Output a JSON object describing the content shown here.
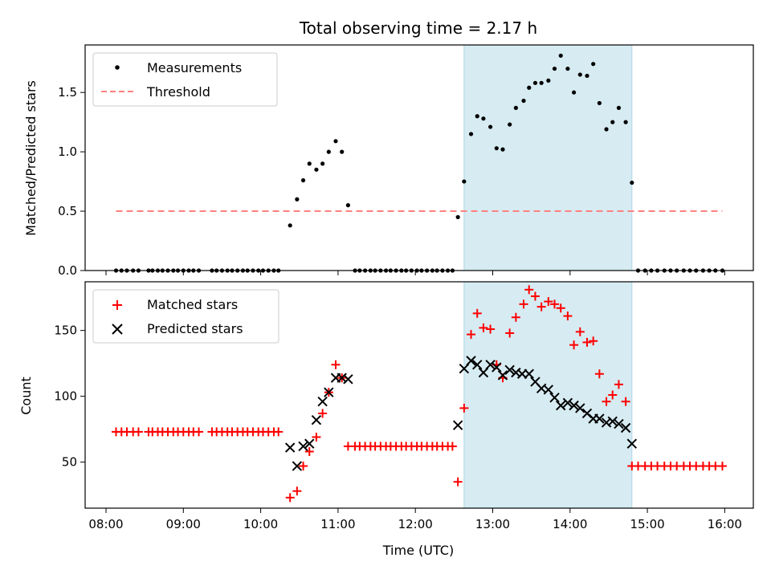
{
  "title": "Total observing time = 2.17 h",
  "colors": {
    "measurement": "#000000",
    "threshold": "#ff8080",
    "matched": "#ff0000",
    "predicted": "#000000",
    "span_fill": "#add8e6"
  },
  "chart_data": [
    {
      "type": "scatter",
      "ylabel": "Matched/Predicted stars",
      "xlim": [
        7.73,
        16.37
      ],
      "ylim": [
        0,
        1.9
      ],
      "yticks": [
        0.0,
        0.5,
        1.0,
        1.5
      ],
      "ytick_labels": [
        "0.0",
        "0.5",
        "1.0",
        "1.5"
      ],
      "grid": false,
      "legend": "upper-left",
      "observing_span": [
        12.63,
        14.8
      ],
      "series": [
        {
          "name": "Measurements",
          "kind": "points",
          "x": [
            8.13,
            8.2,
            8.27,
            8.35,
            8.42,
            8.55,
            8.6,
            8.67,
            8.73,
            8.8,
            8.87,
            8.93,
            9.0,
            9.07,
            9.13,
            9.2,
            9.37,
            9.43,
            9.5,
            9.57,
            9.63,
            9.7,
            9.77,
            9.83,
            9.9,
            9.97,
            10.03,
            10.1,
            10.17,
            10.23,
            10.38,
            10.47,
            10.55,
            10.63,
            10.72,
            10.8,
            10.88,
            10.97,
            11.05,
            11.13,
            11.22,
            11.28,
            11.35,
            11.42,
            11.48,
            11.55,
            11.62,
            11.68,
            11.75,
            11.82,
            11.88,
            11.95,
            12.02,
            12.08,
            12.15,
            12.22,
            12.28,
            12.35,
            12.42,
            12.48,
            12.55,
            12.63,
            12.72,
            12.8,
            12.88,
            12.97,
            13.05,
            13.13,
            13.22,
            13.3,
            13.4,
            13.47,
            13.55,
            13.63,
            13.72,
            13.8,
            13.88,
            13.97,
            14.05,
            14.13,
            14.22,
            14.3,
            14.38,
            14.47,
            14.55,
            14.63,
            14.72,
            14.8,
            14.88,
            14.97,
            15.05,
            15.13,
            15.22,
            15.3,
            15.38,
            15.47,
            15.55,
            15.63,
            15.72,
            15.8,
            15.88,
            15.97
          ],
          "y": [
            0,
            0,
            0,
            0,
            0,
            0,
            0,
            0,
            0,
            0,
            0,
            0,
            0,
            0,
            0,
            0,
            0,
            0,
            0,
            0,
            0,
            0,
            0,
            0,
            0,
            0,
            0,
            0,
            0,
            0,
            0.38,
            0.6,
            0.76,
            0.9,
            0.85,
            0.9,
            1.0,
            1.09,
            1.0,
            0.55,
            0,
            0,
            0,
            0,
            0,
            0,
            0,
            0,
            0,
            0,
            0,
            0,
            0,
            0,
            0,
            0,
            0,
            0,
            0,
            0,
            0.45,
            0.75,
            1.15,
            1.3,
            1.28,
            1.21,
            1.03,
            1.02,
            1.23,
            1.37,
            1.43,
            1.54,
            1.58,
            1.58,
            1.6,
            1.7,
            1.81,
            1.7,
            1.5,
            1.65,
            1.64,
            1.74,
            1.41,
            1.19,
            1.25,
            1.37,
            1.25,
            0.74,
            0,
            0,
            0,
            0,
            0,
            0,
            0,
            0,
            0,
            0,
            0,
            0,
            0,
            0
          ]
        },
        {
          "name": "Threshold",
          "kind": "dashed-line",
          "x": [
            8.13,
            15.97
          ],
          "y": [
            0.5,
            0.5
          ]
        }
      ]
    },
    {
      "type": "scatter",
      "ylabel": "Count",
      "xlabel": "Time (UTC)",
      "xlim": [
        7.73,
        16.37
      ],
      "ylim": [
        15,
        187
      ],
      "yticks": [
        50,
        100,
        150
      ],
      "xticks": [
        8,
        9,
        10,
        11,
        12,
        13,
        14,
        15,
        16
      ],
      "xtick_labels": [
        "08:00",
        "09:00",
        "10:00",
        "11:00",
        "12:00",
        "13:00",
        "14:00",
        "15:00",
        "16:00"
      ],
      "grid": false,
      "legend": "upper-left",
      "observing_span": [
        12.63,
        14.8
      ],
      "series": [
        {
          "name": "Matched stars",
          "marker": "plus",
          "x": [
            8.13,
            8.2,
            8.27,
            8.35,
            8.42,
            8.55,
            8.6,
            8.67,
            8.73,
            8.8,
            8.87,
            8.93,
            9.0,
            9.07,
            9.13,
            9.2,
            9.37,
            9.43,
            9.5,
            9.57,
            9.63,
            9.7,
            9.77,
            9.83,
            9.9,
            9.97,
            10.03,
            10.1,
            10.17,
            10.23,
            10.38,
            10.47,
            10.55,
            10.63,
            10.72,
            10.8,
            10.88,
            10.97,
            11.05,
            11.13,
            11.22,
            11.28,
            11.35,
            11.42,
            11.48,
            11.55,
            11.62,
            11.68,
            11.75,
            11.82,
            11.88,
            11.95,
            12.02,
            12.08,
            12.15,
            12.22,
            12.28,
            12.35,
            12.42,
            12.48,
            12.55,
            12.63,
            12.72,
            12.8,
            12.88,
            12.97,
            13.05,
            13.13,
            13.22,
            13.3,
            13.4,
            13.47,
            13.55,
            13.63,
            13.72,
            13.8,
            13.88,
            13.97,
            14.05,
            14.13,
            14.22,
            14.3,
            14.38,
            14.47,
            14.55,
            14.63,
            14.72,
            14.8,
            14.88,
            14.97,
            15.05,
            15.13,
            15.22,
            15.3,
            15.38,
            15.47,
            15.55,
            15.63,
            15.72,
            15.8,
            15.88,
            15.97
          ],
          "y": [
            73,
            73,
            73,
            73,
            73,
            73,
            73,
            73,
            73,
            73,
            73,
            73,
            73,
            73,
            73,
            73,
            73,
            73,
            73,
            73,
            73,
            73,
            73,
            73,
            73,
            73,
            73,
            73,
            73,
            73,
            23,
            28,
            47,
            58,
            69,
            87,
            103,
            124,
            114,
            62,
            62,
            62,
            62,
            62,
            62,
            62,
            62,
            62,
            62,
            62,
            62,
            62,
            62,
            62,
            62,
            62,
            62,
            62,
            62,
            62,
            35,
            91,
            147,
            163,
            152,
            151,
            124,
            114,
            148,
            160,
            170,
            181,
            176,
            168,
            172,
            170,
            167,
            161,
            139,
            149,
            141,
            142,
            117,
            96,
            101,
            109,
            96,
            47,
            47,
            47,
            47,
            47,
            47,
            47,
            47,
            47,
            47,
            47,
            47,
            47,
            47,
            47
          ]
        },
        {
          "name": "Predicted stars",
          "marker": "cross",
          "x": [
            10.38,
            10.47,
            10.55,
            10.63,
            10.72,
            10.8,
            10.88,
            10.97,
            11.05,
            11.13,
            12.55,
            12.63,
            12.72,
            12.8,
            12.88,
            12.97,
            13.05,
            13.13,
            13.22,
            13.3,
            13.38,
            13.47,
            13.55,
            13.63,
            13.72,
            13.8,
            13.88,
            13.97,
            14.05,
            14.13,
            14.22,
            14.3,
            14.38,
            14.47,
            14.55,
            14.63,
            14.72,
            14.8
          ],
          "y": [
            61,
            47,
            62,
            64,
            82,
            96,
            103,
            114,
            114,
            113,
            78,
            121,
            127,
            124,
            118,
            124,
            122,
            116,
            120,
            118,
            117,
            117,
            111,
            106,
            105,
            99,
            93,
            95,
            93,
            91,
            87,
            83,
            83,
            80,
            81,
            79,
            76,
            64
          ]
        }
      ]
    }
  ]
}
